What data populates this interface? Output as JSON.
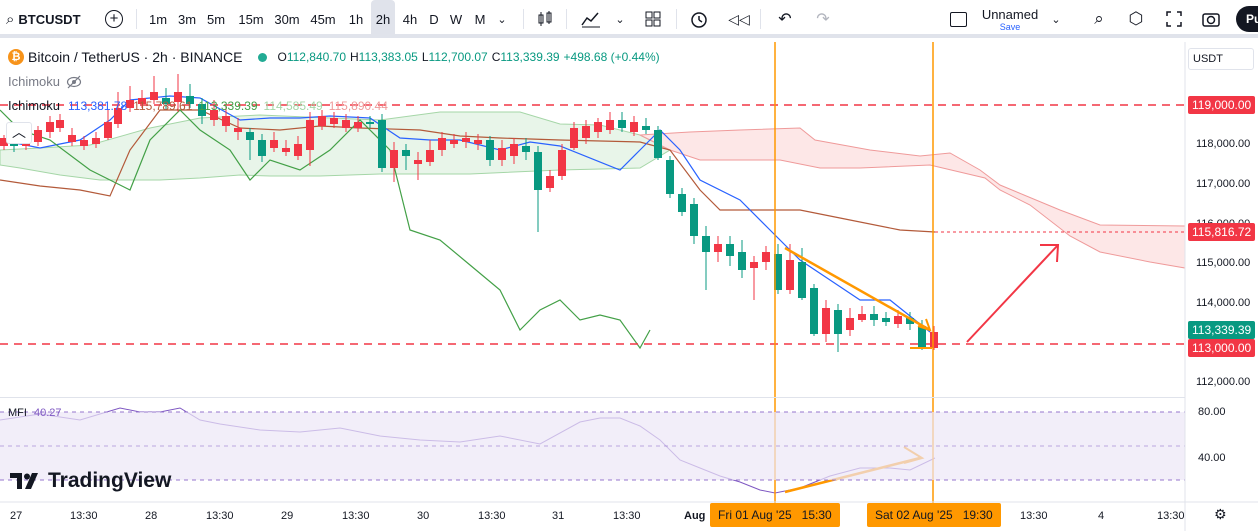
{
  "toolbar": {
    "symbol": "BTCUSDT",
    "timeframes": [
      "1m",
      "3m",
      "5m",
      "15m",
      "30m",
      "45m",
      "1h",
      "2h",
      "4h",
      "D",
      "W",
      "M"
    ],
    "active_timeframe": "2h",
    "layout_name": "Unnamed",
    "save_label": "Save",
    "publish_label": "Pu"
  },
  "legend": {
    "title": "Bitcoin / TetherUS · 2h · BINANCE",
    "open_label": "O",
    "open": "112,840.70",
    "high_label": "H",
    "high": "113,383.05",
    "low_label": "L",
    "low": "112,700.07",
    "close_label": "C",
    "close": "113,339.39",
    "change": "+498.68 (+0.44%)",
    "indicator1": "Ichimoku",
    "indicator2": "Ichimoku",
    "ichimoku_values": [
      "113,381.78",
      "115,789.61",
      "113,339.39",
      "114,585.49",
      "115,890.44"
    ],
    "mfi_label": "MFI",
    "mfi_value": "40.27"
  },
  "price_axis": {
    "currency": "USDT",
    "ticks": [
      "118,000.00",
      "117,000.00",
      "116,000.00",
      "115,000.00",
      "114,000.00",
      "112,000.00"
    ],
    "badges": {
      "level_119": "119,000.00",
      "level_115816": "115,816.72",
      "last_price": "113,339.39",
      "level_113": "113,000.00"
    },
    "mfi_ticks": [
      "80.00",
      "40.00"
    ]
  },
  "time_axis": {
    "ticks": [
      "27",
      "13:30",
      "28",
      "13:30",
      "29",
      "13:30",
      "30",
      "13:30",
      "31",
      "13:30",
      "Aug",
      "13:30",
      "4",
      "13:30"
    ],
    "marker1": "Fri 01 Aug '25   15:30",
    "marker2": "Sat 02 Aug '25   19:30"
  },
  "brand": "TradingView",
  "colors": {
    "up": "#089981",
    "down": "#f23645",
    "orange": "#ff9800",
    "cloud_up": "#e8f5e9",
    "cloud_down": "#fde7e7"
  }
}
